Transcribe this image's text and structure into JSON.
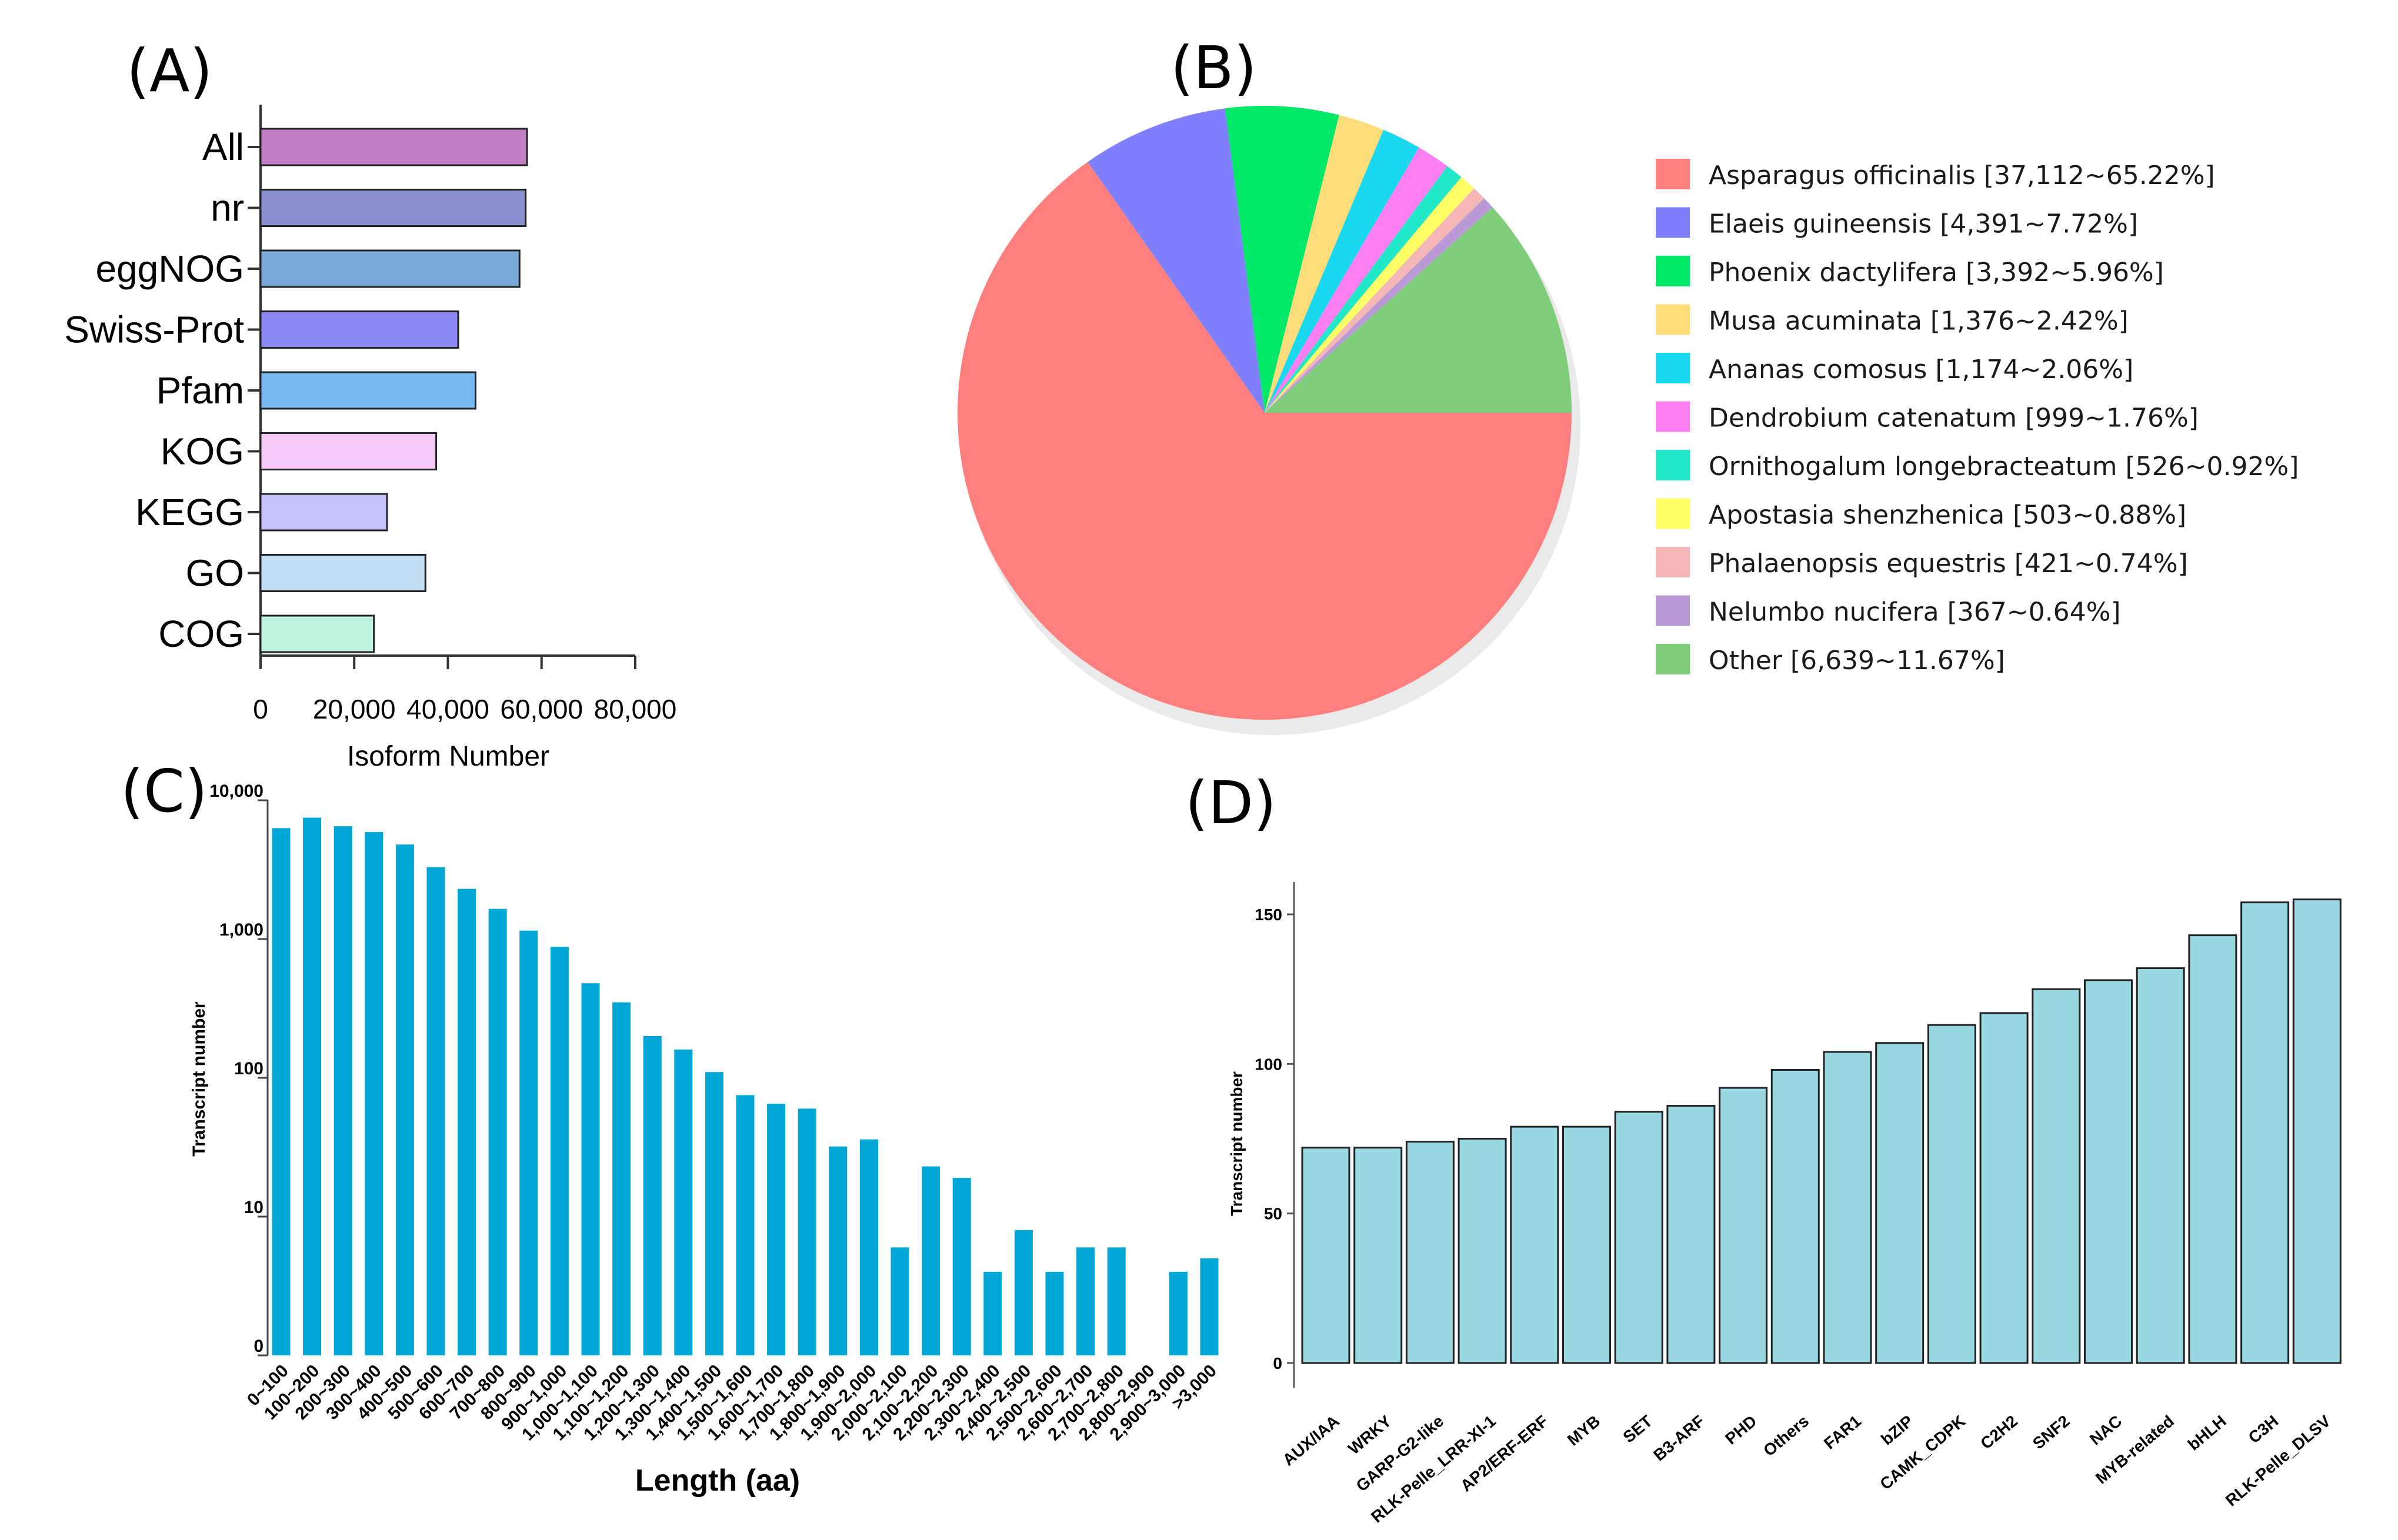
{
  "chart_data": [
    {
      "panel": "(A)",
      "type": "bar",
      "orientation": "horizontal",
      "categories": [
        "All",
        "nr",
        "eggNOG",
        "Swiss-Prot",
        "Pfam",
        "KOG",
        "KEGG",
        "GO",
        "COG"
      ],
      "values": [
        56900,
        56600,
        55300,
        42200,
        45900,
        37500,
        27000,
        35200,
        24200
      ],
      "colors": [
        "#c17fc4",
        "#8a8fd0",
        "#7aa8d8",
        "#8b87f5",
        "#78b8f0",
        "#f5c9f6",
        "#c4c2f8",
        "#c3ddf5",
        "#bff3e0"
      ],
      "xlabel": "Isoform Number",
      "ylabel": "",
      "xlim": [
        0,
        80000
      ],
      "xticks": [
        "0",
        "20,000",
        "40,000",
        "60,000",
        "80,000"
      ]
    },
    {
      "panel": "(B)",
      "type": "pie",
      "labels": [
        "Asparagus officinalis [37,112~65.22%]",
        "Elaeis guineensis [4,391~7.72%]",
        "Phoenix dactylifera [3,392~5.96%]",
        "Musa acuminata [1,376~2.42%]",
        "Ananas comosus [1,174~2.06%]",
        "Dendrobium catenatum [999~1.76%]",
        "Ornithogalum longebracteatum [526~0.92%]",
        "Apostasia shenzhenica [503~0.88%]",
        "Phalaenopsis equestris [421~0.74%]",
        "Nelumbo nucifera [367~0.64%]",
        "Other [6,639~11.67%]"
      ],
      "values": [
        65.22,
        7.72,
        5.96,
        2.42,
        2.06,
        1.76,
        0.92,
        0.88,
        0.74,
        0.64,
        11.67
      ],
      "colors": [
        "#ff7f7f",
        "#8080ff",
        "#00e868",
        "#ffdd7a",
        "#1ad8f0",
        "#ff7ff2",
        "#21e8c8",
        "#ffff66",
        "#f4b6b6",
        "#b99ad6",
        "#7fcc7a"
      ],
      "legend": "right"
    },
    {
      "panel": "(C)",
      "type": "bar",
      "yscale": "log",
      "categories": [
        "0~100",
        "100~200",
        "200~300",
        "300~400",
        "400~500",
        "500~600",
        "600~700",
        "700~800",
        "800~900",
        "900~1,000",
        "1,000~1,100",
        "1,100~1,200",
        "1,200~1,300",
        "1,300~1,400",
        "1,400~1,500",
        "1,500~1,600",
        "1,600~1,700",
        "1,700~1,800",
        "1,800~1,900",
        "1,900~2,000",
        "2,000~2,100",
        "2,100~2,200",
        "2,200~2,300",
        "2,300~2,400",
        "2,400~2,500",
        "2,500~2,600",
        "2,600~2,700",
        "2,700~2,800",
        "2,800~2,900",
        "2,900~3,000",
        ">3,000"
      ],
      "values": [
        6300,
        7500,
        6500,
        5900,
        4800,
        3300,
        2300,
        1650,
        1150,
        880,
        480,
        350,
        200,
        160,
        110,
        75,
        65,
        60,
        32,
        36,
        6,
        23,
        19,
        4,
        8,
        4,
        6,
        6,
        0,
        4,
        5
      ],
      "color": "#00a6d6",
      "xlabel": "Length (aa)",
      "ylabel": "Transcript number",
      "yticks": [
        "0",
        "10",
        "100",
        "1,000",
        "10,000"
      ]
    },
    {
      "panel": "(D)",
      "type": "bar",
      "categories": [
        "AUX/IAA",
        "WRKY",
        "GARP-G2-like",
        "RLK-Pelle_LRR-XI-1",
        "AP2/ERF-ERF",
        "MYB",
        "SET",
        "B3-ARF",
        "PHD",
        "Others",
        "FAR1",
        "bZIP",
        "CAMK_CDPK",
        "C2H2",
        "SNF2",
        "NAC",
        "MYB-related",
        "bHLH",
        "C3H",
        "RLK-Pelle_DLSV"
      ],
      "values": [
        72,
        72,
        74,
        75,
        79,
        79,
        84,
        86,
        92,
        98,
        104,
        107,
        113,
        117,
        125,
        128,
        132,
        143,
        154,
        155
      ],
      "color": "#99d8e3",
      "xlabel": "",
      "ylabel": "Transcript number",
      "ylim": [
        0,
        160
      ],
      "yticks": [
        "0",
        "50",
        "100",
        "150"
      ]
    }
  ]
}
